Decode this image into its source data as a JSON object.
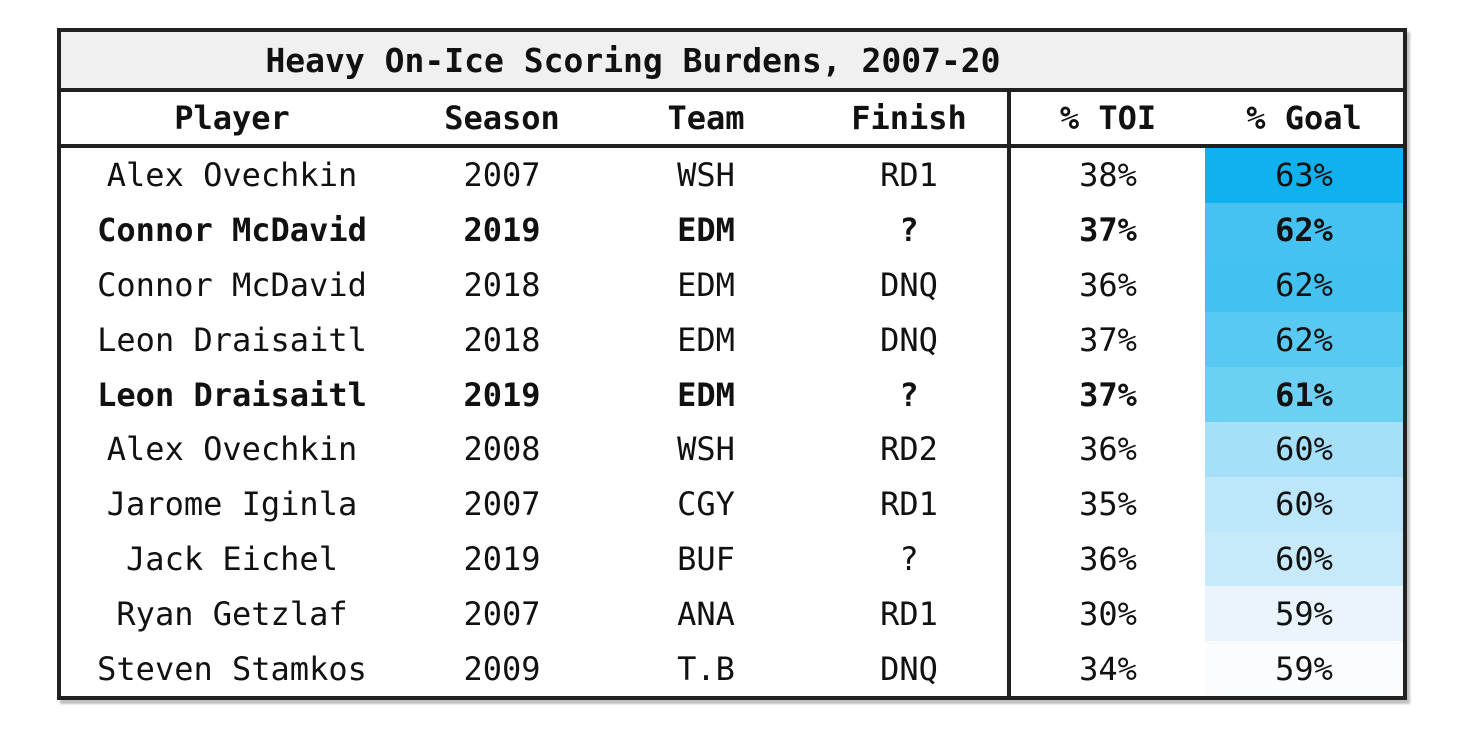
{
  "table": {
    "title": "Heavy On-Ice Scoring Burdens, 2007-20",
    "columns": [
      {
        "label": "Player"
      },
      {
        "label": "Season"
      },
      {
        "label": "Team"
      },
      {
        "label": "Finish"
      },
      {
        "label": "% TOI"
      },
      {
        "label": "% Goal"
      }
    ],
    "rows": [
      {
        "player": "Alex Ovechkin",
        "season": "2007",
        "team": "WSH",
        "finish": "RD1",
        "toi": "38%",
        "goal": "63%",
        "bold": false,
        "goal_bg": "#0FB1EF"
      },
      {
        "player": "Connor McDavid",
        "season": "2019",
        "team": "EDM",
        "finish": "?",
        "toi": "37%",
        "goal": "62%",
        "bold": true,
        "goal_bg": "#45C2F1"
      },
      {
        "player": "Connor McDavid",
        "season": "2018",
        "team": "EDM",
        "finish": "DNQ",
        "toi": "36%",
        "goal": "62%",
        "bold": false,
        "goal_bg": "#43C1F0"
      },
      {
        "player": "Leon Draisaitl",
        "season": "2018",
        "team": "EDM",
        "finish": "DNQ",
        "toi": "37%",
        "goal": "62%",
        "bold": false,
        "goal_bg": "#58C9F2"
      },
      {
        "player": "Leon Draisaitl",
        "season": "2019",
        "team": "EDM",
        "finish": "?",
        "toi": "37%",
        "goal": "61%",
        "bold": true,
        "goal_bg": "#6CCFF4"
      },
      {
        "player": "Alex Ovechkin",
        "season": "2008",
        "team": "WSH",
        "finish": "RD2",
        "toi": "36%",
        "goal": "60%",
        "bold": false,
        "goal_bg": "#A6E0F8"
      },
      {
        "player": "Jarome Iginla",
        "season": "2007",
        "team": "CGY",
        "finish": "RD1",
        "toi": "35%",
        "goal": "60%",
        "bold": false,
        "goal_bg": "#BCE6FA"
      },
      {
        "player": "Jack Eichel",
        "season": "2019",
        "team": "BUF",
        "finish": "?",
        "toi": "36%",
        "goal": "60%",
        "bold": false,
        "goal_bg": "#C7EAFB"
      },
      {
        "player": "Ryan Getzlaf",
        "season": "2007",
        "team": "ANA",
        "finish": "RD1",
        "toi": "30%",
        "goal": "59%",
        "bold": false,
        "goal_bg": "#E9F4FD"
      },
      {
        "player": "Steven Stamkos",
        "season": "2009",
        "team": "T.B",
        "finish": "DNQ",
        "toi": "34%",
        "goal": "59%",
        "bold": false,
        "goal_bg": "#FAFCFE"
      }
    ]
  },
  "colors": {
    "border": "#212121",
    "title_background": "#f0f0f0",
    "heatmap_max": "#0FB1EF",
    "heatmap_min": "#FAFCFE",
    "text": "#111111"
  },
  "chart_data": {
    "type": "table",
    "title": "Heavy On-Ice Scoring Burdens, 2007-20",
    "columns": [
      "Player",
      "Season",
      "Team",
      "Finish",
      "% TOI",
      "% Goal"
    ],
    "rows": [
      [
        "Alex Ovechkin",
        2007,
        "WSH",
        "RD1",
        38,
        63
      ],
      [
        "Connor McDavid",
        2019,
        "EDM",
        "?",
        37,
        62
      ],
      [
        "Connor McDavid",
        2018,
        "EDM",
        "DNQ",
        36,
        62
      ],
      [
        "Leon Draisaitl",
        2018,
        "EDM",
        "DNQ",
        37,
        62
      ],
      [
        "Leon Draisaitl",
        2019,
        "EDM",
        "?",
        37,
        61
      ],
      [
        "Alex Ovechkin",
        2008,
        "WSH",
        "RD2",
        36,
        60
      ],
      [
        "Jarome Iginla",
        2007,
        "CGY",
        "RD1",
        35,
        60
      ],
      [
        "Jack Eichel",
        2019,
        "BUF",
        "?",
        36,
        60
      ],
      [
        "Ryan Getzlaf",
        2007,
        "ANA",
        "RD1",
        30,
        59
      ],
      [
        "Steven Stamkos",
        2009,
        "T.B",
        "DNQ",
        34,
        59
      ]
    ],
    "bold_row_indices": [
      1,
      4
    ],
    "notes": "% Goal column shaded with a blue color scale; darker blue = higher value. Vertical divider separates Finish from % TOI."
  }
}
